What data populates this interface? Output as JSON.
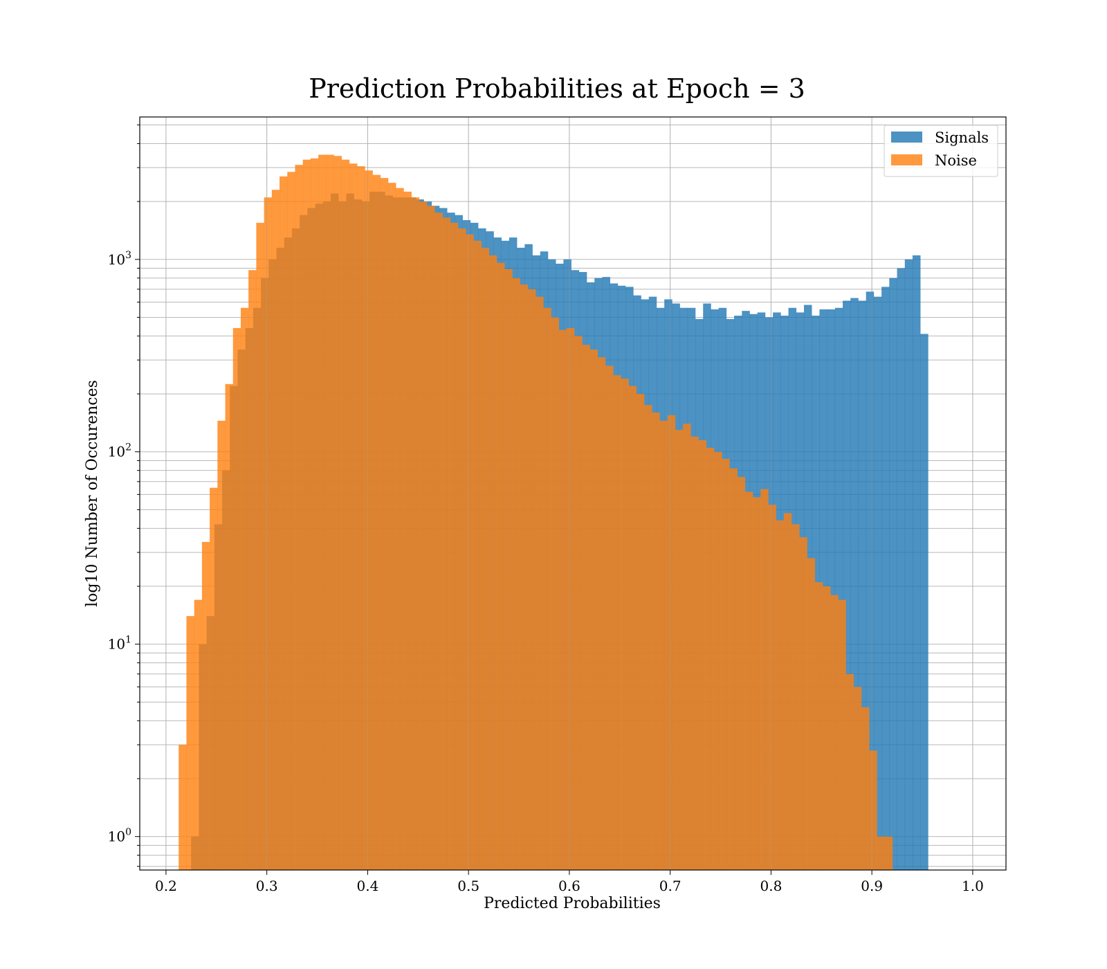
{
  "chart_data": {
    "type": "bar",
    "title": "Prediction Probabilities at Epoch = 3",
    "xlabel": "Predicted Probabilities",
    "ylabel": "log10 Number of Occurences",
    "xlim": [
      0.174,
      1.033
    ],
    "ylim": [
      0.67,
      5500
    ],
    "yscale": "log",
    "grid": true,
    "legend_position": "top-right",
    "x_ticks": [
      0.2,
      0.3,
      0.4,
      0.5,
      0.6,
      0.7,
      0.8,
      0.9,
      1.0
    ],
    "x_tick_labels": [
      "0.2",
      "0.3",
      "0.4",
      "0.5",
      "0.6",
      "0.7",
      "0.8",
      "0.9",
      "1.0"
    ],
    "y_ticks": [
      1,
      10,
      100,
      1000
    ],
    "y_tick_labels": [
      {
        "base": "10",
        "exp": "0"
      },
      {
        "base": "10",
        "exp": "1"
      },
      {
        "base": "10",
        "exp": "2"
      },
      {
        "base": "10",
        "exp": "3"
      }
    ],
    "series": [
      {
        "name": "Signals",
        "color": "#1f77b4",
        "bin_start": 0.2249,
        "bin_width": 0.007693,
        "values": [
          1,
          10,
          14,
          42,
          80,
          220,
          340,
          440,
          560,
          800,
          1000,
          1150,
          1300,
          1450,
          1700,
          1850,
          1950,
          2000,
          2200,
          2000,
          2200,
          2050,
          2000,
          2250,
          2250,
          2150,
          2100,
          2100,
          2100,
          2050,
          2000,
          1900,
          1850,
          1750,
          1700,
          1600,
          1550,
          1450,
          1400,
          1300,
          1250,
          1300,
          1150,
          1200,
          1050,
          1100,
          1000,
          950,
          1000,
          880,
          860,
          760,
          800,
          810,
          750,
          730,
          720,
          650,
          620,
          640,
          560,
          620,
          590,
          560,
          560,
          490,
          590,
          550,
          560,
          490,
          510,
          540,
          520,
          530,
          500,
          530,
          510,
          560,
          530,
          580,
          510,
          550,
          550,
          560,
          610,
          630,
          610,
          680,
          640,
          720,
          800,
          900,
          1000,
          1050,
          410
        ]
      },
      {
        "name": "Noise",
        "color": "#ff7f0e",
        "bin_start": 0.2126,
        "bin_width": 0.007693,
        "values": [
          3,
          14,
          17,
          34,
          65,
          145,
          225,
          440,
          560,
          880,
          1550,
          2100,
          2300,
          2700,
          2850,
          3100,
          3300,
          3350,
          3500,
          3500,
          3450,
          3300,
          3150,
          3050,
          2900,
          2750,
          2650,
          2500,
          2350,
          2250,
          2100,
          2000,
          1900,
          1750,
          1650,
          1550,
          1450,
          1350,
          1250,
          1150,
          1050,
          960,
          890,
          800,
          740,
          700,
          640,
          560,
          500,
          430,
          440,
          400,
          360,
          340,
          310,
          280,
          250,
          240,
          220,
          200,
          175,
          160,
          145,
          155,
          130,
          140,
          120,
          115,
          105,
          100,
          92,
          82,
          74,
          62,
          58,
          64,
          53,
          44,
          48,
          42,
          36,
          28,
          21,
          20,
          18,
          17,
          7,
          6,
          4.7,
          2.8,
          1,
          1
        ]
      }
    ]
  }
}
